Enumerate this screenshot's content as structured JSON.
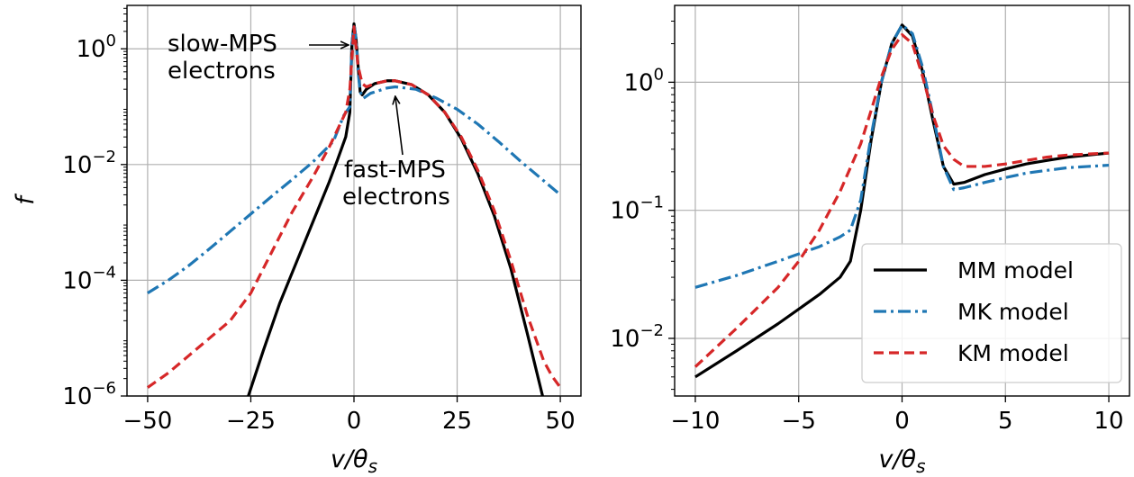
{
  "chart_data": [
    {
      "type": "line",
      "panel": "left",
      "xlabel": "v/θs",
      "ylabel": "f",
      "xlim": [
        -55,
        55
      ],
      "ylim_log10": [
        -6,
        0.75
      ],
      "yscale": "log",
      "grid": true,
      "x_ticks": [
        -50,
        -25,
        0,
        25,
        50
      ],
      "y_ticks_exp": [
        0,
        -2,
        -4,
        -6
      ],
      "annotations": [
        {
          "text_lines": [
            "slow-MPS",
            "electrons"
          ],
          "points_to": [
            0,
            1.0
          ]
        },
        {
          "text_lines": [
            "fast-MPS",
            "electrons"
          ],
          "points_to": [
            10,
            0.22
          ]
        }
      ],
      "series": [
        {
          "name": "MM model",
          "color": "#000000",
          "dash": "solid",
          "x": [
            -25.6,
            -22,
            -18,
            -14,
            -10,
            -6,
            -4,
            -2,
            -1,
            -0.5,
            0,
            0.5,
            1,
            1.5,
            2,
            3,
            5,
            8,
            10,
            14,
            18,
            22,
            26,
            30,
            34,
            38,
            42,
            45.7
          ],
          "y": [
            1e-06,
            6e-06,
            4e-05,
            0.0002,
            0.001,
            0.005,
            0.012,
            0.03,
            0.08,
            1.2,
            2.7,
            1.5,
            0.5,
            0.18,
            0.16,
            0.2,
            0.25,
            0.28,
            0.28,
            0.24,
            0.16,
            0.08,
            0.028,
            0.007,
            0.0013,
            0.00016,
            1.2e-05,
            1e-06
          ]
        },
        {
          "name": "MK model",
          "color": "#1f77b4",
          "dash": "dashdot",
          "x": [
            -50,
            -45,
            -40,
            -35,
            -30,
            -25,
            -20,
            -15,
            -10,
            -5,
            -2.5,
            -1,
            -0.5,
            0,
            0.5,
            1,
            1.5,
            2.3,
            4,
            8,
            10,
            15,
            20,
            25,
            30,
            35,
            40,
            45,
            50
          ],
          "y": [
            6e-05,
            0.0001,
            0.00018,
            0.00035,
            0.0007,
            0.0014,
            0.0028,
            0.0055,
            0.011,
            0.025,
            0.07,
            0.1,
            1.2,
            2.7,
            1.5,
            0.4,
            0.18,
            0.14,
            0.17,
            0.21,
            0.22,
            0.2,
            0.14,
            0.09,
            0.05,
            0.025,
            0.012,
            0.006,
            0.003
          ]
        },
        {
          "name": "KM model",
          "color": "#d62728",
          "dash": "dashed",
          "x": [
            -50,
            -45,
            -40,
            -35,
            -30,
            -25,
            -20,
            -15,
            -10,
            -6,
            -4,
            -2,
            -1,
            0,
            1,
            2,
            3,
            5,
            8,
            10,
            14,
            18,
            22,
            26,
            30,
            34,
            38,
            42,
            46,
            48,
            50
          ],
          "y": [
            1.4e-06,
            2.5e-06,
            5e-06,
            1e-05,
            2e-05,
            6e-05,
            0.0003,
            0.0015,
            0.006,
            0.02,
            0.04,
            0.08,
            0.2,
            2.4,
            0.5,
            0.25,
            0.22,
            0.25,
            0.28,
            0.28,
            0.24,
            0.16,
            0.08,
            0.03,
            0.008,
            0.0016,
            0.00022,
            2.5e-05,
            4e-06,
            2.2e-06,
            1.4e-06
          ]
        }
      ]
    },
    {
      "type": "line",
      "panel": "right",
      "xlabel": "v/θs",
      "xlim": [
        -11,
        11
      ],
      "ylim_log10": [
        -2.45,
        0.6
      ],
      "yscale": "log",
      "grid": true,
      "x_ticks": [
        -10,
        -5,
        0,
        5,
        10
      ],
      "y_ticks_exp": [
        0,
        -1,
        -2
      ],
      "legend_position": "lower right",
      "series": [
        {
          "name": "MM model",
          "color": "#000000",
          "dash": "solid",
          "x": [
            -10,
            -8,
            -6,
            -4,
            -3,
            -2.5,
            -2,
            -1.5,
            -1,
            -0.5,
            0,
            0.5,
            1,
            1.5,
            2,
            2.5,
            3,
            4,
            5,
            6,
            7,
            8,
            9,
            10
          ],
          "y": [
            0.005,
            0.008,
            0.013,
            0.022,
            0.03,
            0.04,
            0.1,
            0.35,
            1.0,
            2.0,
            2.8,
            2.3,
            1.2,
            0.5,
            0.22,
            0.16,
            0.165,
            0.19,
            0.21,
            0.23,
            0.245,
            0.26,
            0.27,
            0.28
          ]
        },
        {
          "name": "MK model",
          "color": "#1f77b4",
          "dash": "dashdot",
          "x": [
            -10,
            -8,
            -6,
            -4,
            -3,
            -2.5,
            -2,
            -1.5,
            -1,
            -0.5,
            0,
            0.5,
            1,
            1.5,
            2,
            2.5,
            3,
            4,
            5,
            6,
            7,
            8,
            9,
            10
          ],
          "y": [
            0.025,
            0.031,
            0.04,
            0.052,
            0.062,
            0.07,
            0.12,
            0.38,
            1.0,
            2.0,
            2.8,
            2.4,
            1.3,
            0.55,
            0.22,
            0.145,
            0.15,
            0.165,
            0.18,
            0.195,
            0.205,
            0.215,
            0.22,
            0.225
          ]
        },
        {
          "name": "KM model",
          "color": "#d62728",
          "dash": "dashed",
          "x": [
            -10,
            -8,
            -6,
            -5,
            -4,
            -3,
            -2,
            -1.5,
            -1,
            -0.5,
            0,
            0.5,
            1,
            1.5,
            2,
            2.5,
            3,
            4,
            5,
            6,
            7,
            8,
            9,
            10
          ],
          "y": [
            0.006,
            0.012,
            0.025,
            0.04,
            0.07,
            0.14,
            0.33,
            0.6,
            1.1,
            1.8,
            2.35,
            2.0,
            1.1,
            0.55,
            0.32,
            0.25,
            0.22,
            0.22,
            0.23,
            0.245,
            0.26,
            0.27,
            0.275,
            0.28
          ]
        }
      ],
      "legend": [
        "MM model",
        "MK model",
        "KM model"
      ]
    }
  ]
}
